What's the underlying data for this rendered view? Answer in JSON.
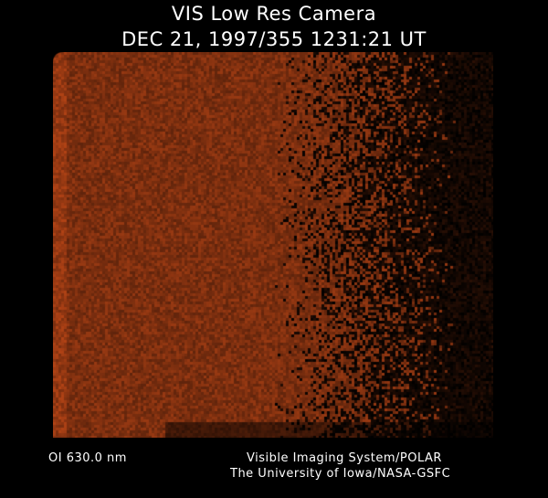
{
  "header": {
    "title": "VIS Low Res Camera",
    "datetime": "DEC 21, 1997/355 1231:21 UT"
  },
  "footer": {
    "wavelength": "OI  630.0 nm",
    "instrument": "Visible Imaging System/POLAR",
    "organization": "The University of Iowa/NASA-GSFC"
  },
  "colors": {
    "background": "#000000",
    "emission": "#9a3a12"
  }
}
